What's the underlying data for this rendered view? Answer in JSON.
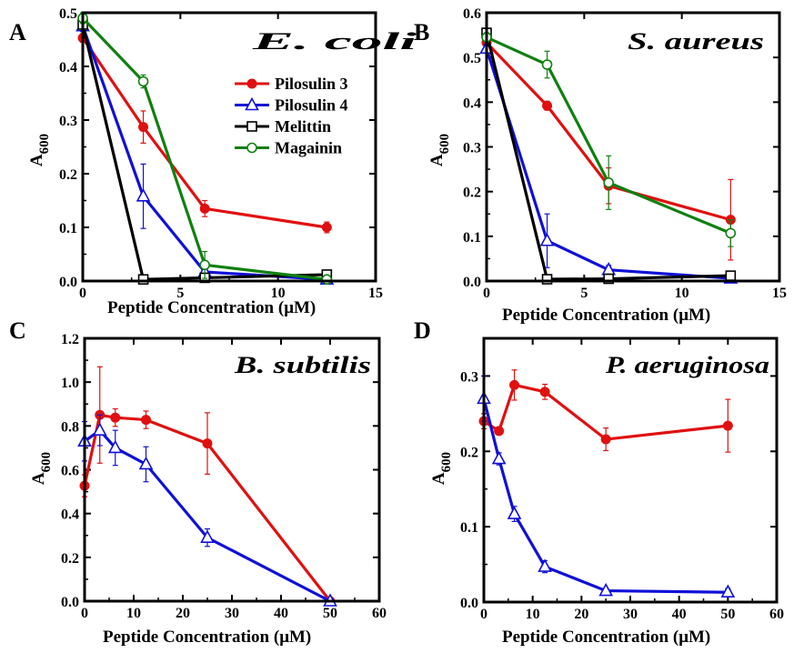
{
  "chart_data": [
    {
      "type": "line",
      "panel_letter": "A",
      "annotation": "E. coli",
      "xlabel": "Peptide Concentration",
      "xlabel_unit": "(μM)",
      "ylabel_main": "A",
      "ylabel_sub": "600",
      "xlim": [
        0,
        15
      ],
      "ylim": [
        0,
        0.5
      ],
      "xticks": [
        0,
        5,
        10,
        15
      ],
      "yticks": [
        0,
        0.1,
        0.2,
        0.3,
        0.4,
        0.5
      ],
      "ytick_labels": [
        "0.0",
        "0.1",
        "0.2",
        "0.3",
        "0.4",
        "0.5"
      ],
      "grid": false,
      "legend_position": "top-right",
      "series": [
        {
          "name": "Pilosulin 3",
          "color": "#e01010",
          "marker": "filled-circle",
          "x": [
            0,
            3.1,
            6.25,
            12.5
          ],
          "y": [
            0.453,
            0.287,
            0.135,
            0.1
          ],
          "err": [
            0.008,
            0.03,
            0.015,
            0.01
          ]
        },
        {
          "name": "Pilosulin 4",
          "color": "#1010d8",
          "marker": "open-triangle",
          "x": [
            0,
            3.1,
            6.25,
            12.5
          ],
          "y": [
            0.475,
            0.158,
            0.017,
            0.003
          ],
          "err": [
            0.01,
            0.06,
            0.005,
            0.002
          ]
        },
        {
          "name": "Melittin",
          "color": "#000000",
          "marker": "open-square",
          "x": [
            0,
            3.1,
            6.25,
            12.5
          ],
          "y": [
            0.478,
            0.003,
            0.006,
            0.012
          ],
          "err": [
            0,
            0,
            0,
            0
          ]
        },
        {
          "name": "Magainin",
          "color": "#108010",
          "marker": "open-circle",
          "x": [
            0,
            3.1,
            6.25,
            12.5
          ],
          "y": [
            0.49,
            0.372,
            0.03,
            0.003
          ],
          "err": [
            0.01,
            0.012,
            0.025,
            0.002
          ]
        }
      ]
    },
    {
      "type": "line",
      "panel_letter": "B",
      "annotation": "S. aureus",
      "xlabel": "Peptide Concentration",
      "xlabel_unit": "(μM)",
      "ylabel_main": "A",
      "ylabel_sub": "600",
      "xlim": [
        0,
        15
      ],
      "ylim": [
        0,
        0.6
      ],
      "xticks": [
        0,
        5,
        10,
        15
      ],
      "yticks": [
        0,
        0.1,
        0.2,
        0.3,
        0.4,
        0.5,
        0.6
      ],
      "ytick_labels": [
        "0.0",
        "0.1",
        "0.2",
        "0.3",
        "0.4",
        "0.5",
        "0.6"
      ],
      "grid": false,
      "series": [
        {
          "name": "Pilosulin 3",
          "color": "#e01010",
          "marker": "filled-circle",
          "x": [
            0,
            3.1,
            6.25,
            12.5
          ],
          "y": [
            0.533,
            0.392,
            0.213,
            0.137
          ],
          "err": [
            0.01,
            0.01,
            0.04,
            0.09
          ]
        },
        {
          "name": "Pilosulin 4",
          "color": "#1010d8",
          "marker": "open-triangle",
          "x": [
            0,
            3.1,
            6.25,
            12.5
          ],
          "y": [
            0.52,
            0.09,
            0.025,
            0.006
          ],
          "err": [
            0.01,
            0.06,
            0.01,
            0.003
          ]
        },
        {
          "name": "Melittin",
          "color": "#000000",
          "marker": "open-square",
          "x": [
            0,
            3.1,
            6.25,
            12.5
          ],
          "y": [
            0.555,
            0.004,
            0.005,
            0.012
          ],
          "err": [
            0,
            0,
            0,
            0
          ]
        },
        {
          "name": "Magainin",
          "color": "#108010",
          "marker": "open-circle",
          "x": [
            0,
            3.1,
            6.25,
            12.5
          ],
          "y": [
            0.545,
            0.484,
            0.22,
            0.107
          ],
          "err": [
            0.01,
            0.03,
            0.06,
            0.03
          ]
        }
      ]
    },
    {
      "type": "line",
      "panel_letter": "C",
      "annotation": "B. subtilis",
      "xlabel": "Peptide Concentration",
      "xlabel_unit": "(μM)",
      "ylabel_main": "A",
      "ylabel_sub": "600",
      "xlim": [
        0,
        60
      ],
      "ylim": [
        0,
        1.2
      ],
      "xticks": [
        0,
        10,
        20,
        30,
        40,
        50,
        60
      ],
      "yticks": [
        0,
        0.2,
        0.4,
        0.6,
        0.8,
        1.0,
        1.2
      ],
      "ytick_labels": [
        "0.0",
        "0.2",
        "0.4",
        "0.6",
        "0.8",
        "1.0",
        "1.2"
      ],
      "grid": false,
      "series": [
        {
          "name": "Pilosulin 3",
          "color": "#e01010",
          "marker": "filled-circle",
          "x": [
            0,
            3.1,
            6.25,
            12.5,
            25,
            50
          ],
          "y": [
            0.527,
            0.85,
            0.838,
            0.828,
            0.72,
            0.0
          ],
          "err": [
            0.05,
            0.22,
            0.04,
            0.04,
            0.14,
            0.005
          ]
        },
        {
          "name": "Pilosulin 4",
          "color": "#1010d8",
          "marker": "open-triangle",
          "x": [
            0,
            3.1,
            6.25,
            12.5,
            25,
            50
          ],
          "y": [
            0.73,
            0.78,
            0.7,
            0.625,
            0.29,
            0.0
          ],
          "err": [
            0.09,
            0.07,
            0.08,
            0.08,
            0.04,
            0.005
          ]
        }
      ]
    },
    {
      "type": "line",
      "panel_letter": "D",
      "annotation": "P. aeruginosa",
      "xlabel": "Peptide Concentration",
      "xlabel_unit": "(μM)",
      "ylabel_main": "A",
      "ylabel_sub": "600",
      "xlim": [
        0,
        60
      ],
      "ylim": [
        0,
        0.35
      ],
      "xticks": [
        0,
        10,
        20,
        30,
        40,
        50,
        60
      ],
      "yticks": [
        0,
        0.1,
        0.2,
        0.3
      ],
      "ytick_labels": [
        "0.0",
        "0.1",
        "0.2",
        "0.3"
      ],
      "grid": false,
      "series": [
        {
          "name": "Pilosulin 3",
          "color": "#e01010",
          "marker": "filled-circle",
          "x": [
            0,
            3.1,
            6.25,
            12.5,
            25,
            50
          ],
          "y": [
            0.24,
            0.227,
            0.288,
            0.279,
            0.216,
            0.234
          ],
          "err": [
            0.01,
            0.005,
            0.02,
            0.01,
            0.015,
            0.035
          ]
        },
        {
          "name": "Pilosulin 4",
          "color": "#1010d8",
          "marker": "open-triangle",
          "x": [
            0,
            3.1,
            6.25,
            12.5,
            25,
            50
          ],
          "y": [
            0.27,
            0.19,
            0.117,
            0.047,
            0.015,
            0.013
          ],
          "err": [
            0.03,
            0.008,
            0.01,
            0.008,
            0.003,
            0.005
          ]
        }
      ]
    }
  ]
}
